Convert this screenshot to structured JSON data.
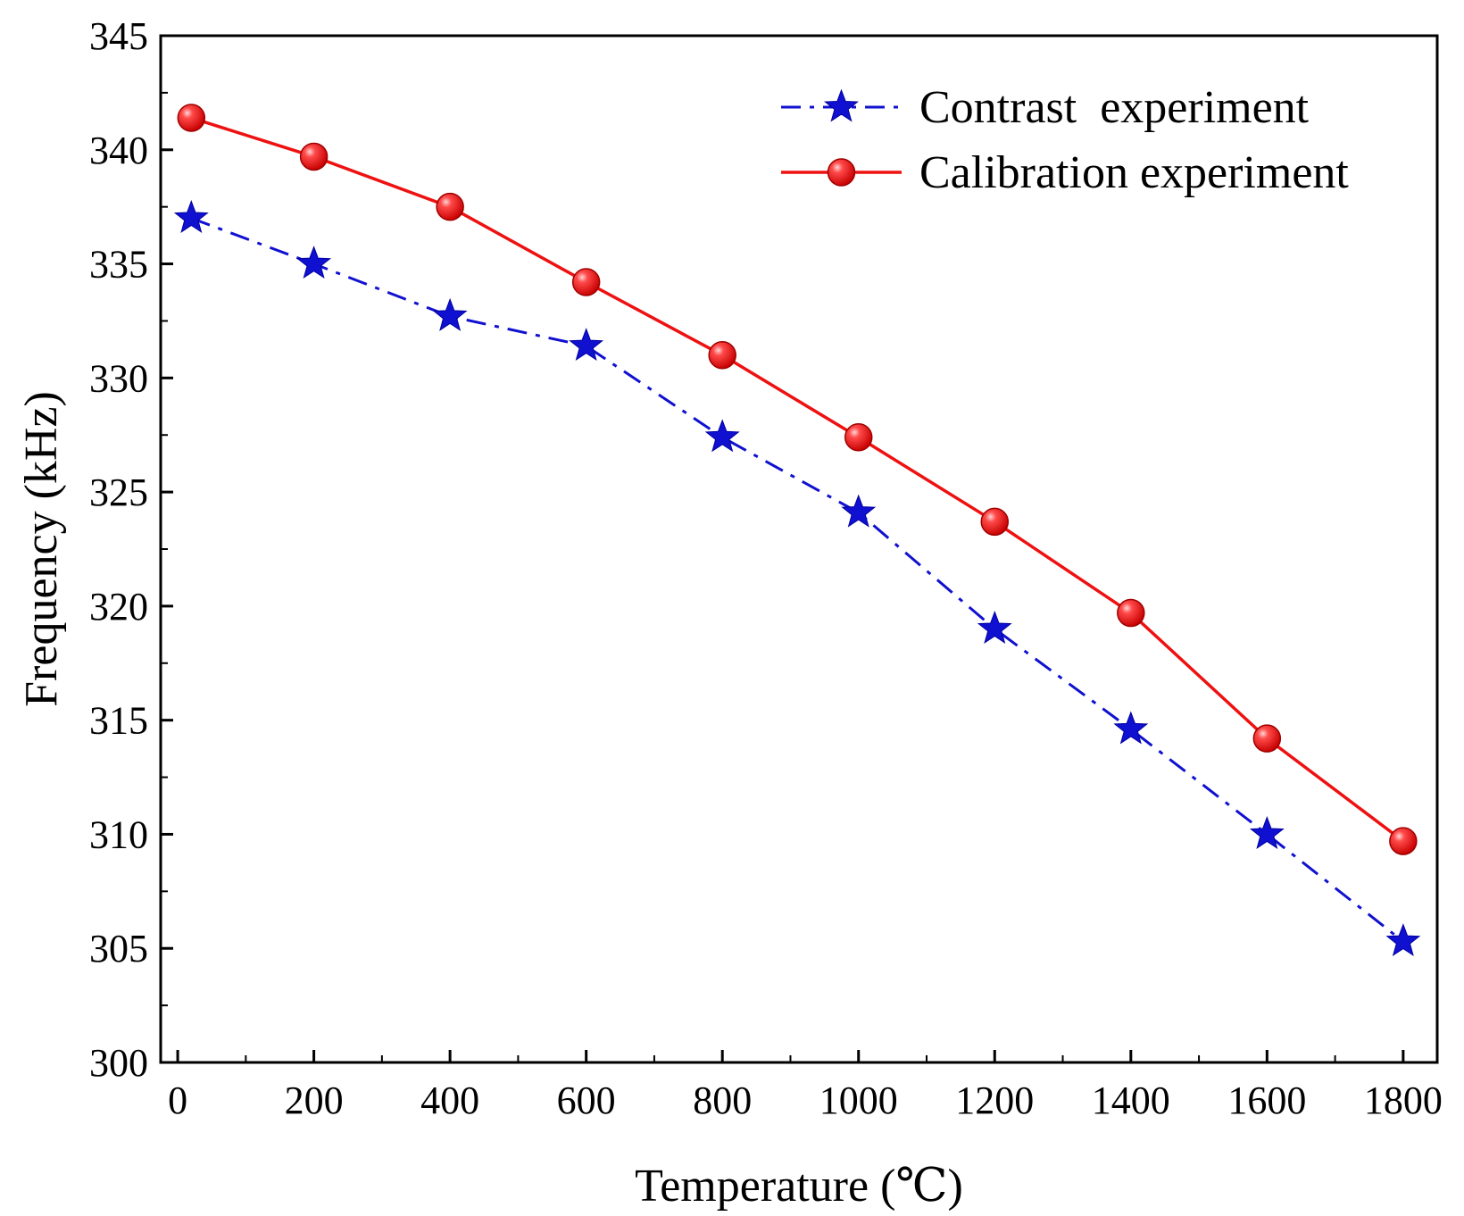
{
  "chart_data": {
    "type": "line",
    "title": "",
    "xlabel": "Temperature (℃)",
    "ylabel": "Frequency (kHz)",
    "xlim": [
      -25,
      1850
    ],
    "ylim": [
      300,
      345
    ],
    "xticks": [
      0,
      200,
      400,
      600,
      800,
      1000,
      1200,
      1400,
      1600,
      1800
    ],
    "yticks": [
      300,
      305,
      310,
      315,
      320,
      325,
      330,
      335,
      340,
      345
    ],
    "x": [
      20,
      200,
      400,
      600,
      800,
      1000,
      1200,
      1400,
      1600,
      1800
    ],
    "series": [
      {
        "name": "Contrast  experiment",
        "values": [
          337.0,
          335.0,
          332.7,
          331.4,
          327.4,
          324.1,
          319.0,
          314.6,
          310.0,
          305.3
        ],
        "color": "#1010d0",
        "marker": "star",
        "line_style": "dash-dot"
      },
      {
        "name": "Calibration experiment",
        "values": [
          341.4,
          339.7,
          337.5,
          334.2,
          331.0,
          327.4,
          323.7,
          319.7,
          314.2,
          309.7
        ],
        "color": "#ee1111",
        "marker": "circle",
        "line_style": "solid"
      }
    ],
    "legend_position": "top-right",
    "grid": false
  }
}
